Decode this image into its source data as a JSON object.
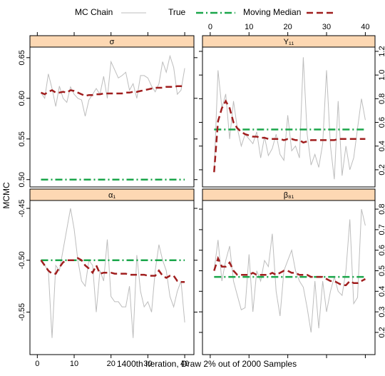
{
  "legend": [
    {
      "name": "MC Chain",
      "color": "#bdbdbd"
    },
    {
      "name": "True",
      "color": "#1aa64a"
    },
    {
      "name": "Moving Median",
      "color": "#a01e1e"
    }
  ],
  "xlabel": "1400th Iteration, Draw 2% out of 2000 Samples",
  "ylabel": "MCMC",
  "x": [
    1,
    2,
    3,
    4,
    5,
    6,
    7,
    8,
    9,
    10,
    11,
    12,
    13,
    14,
    15,
    16,
    17,
    18,
    19,
    20,
    21,
    22,
    23,
    24,
    25,
    26,
    27,
    28,
    29,
    30,
    31,
    32,
    33,
    34,
    35,
    36,
    37,
    38,
    39,
    40
  ],
  "xlim": [
    -2,
    42.5
  ],
  "xticks": [
    0,
    10,
    20,
    30,
    40
  ],
  "chart_data": [
    {
      "type": "line",
      "title": "σ",
      "chain": [
        0.607,
        0.6,
        0.63,
        0.612,
        0.59,
        0.615,
        0.6,
        0.595,
        0.614,
        0.605,
        0.6,
        0.598,
        0.578,
        0.598,
        0.605,
        0.612,
        0.605,
        0.627,
        0.6,
        0.645,
        0.635,
        0.625,
        0.628,
        0.632,
        0.61,
        0.618,
        0.6,
        0.628,
        0.628,
        0.625,
        0.615,
        0.608,
        0.618,
        0.645,
        0.632,
        0.652,
        0.638,
        0.605,
        0.61,
        0.637
      ],
      "median": [
        0.607,
        0.605,
        0.608,
        0.61,
        0.607,
        0.607,
        0.608,
        0.607,
        0.61,
        0.609,
        0.607,
        0.605,
        0.603,
        0.604,
        0.604,
        0.605,
        0.605,
        0.606,
        0.606,
        0.606,
        0.606,
        0.606,
        0.606,
        0.607,
        0.607,
        0.608,
        0.608,
        0.609,
        0.61,
        0.611,
        0.612,
        0.613,
        0.613,
        0.613,
        0.614,
        0.614,
        0.614,
        0.615,
        0.615,
        0.615
      ],
      "true": 0.5,
      "ylim": [
        0.491,
        0.663
      ],
      "yticks": [
        {
          "value": 0.5,
          "label": "0.50"
        },
        0.55,
        {
          "value": 0.6,
          "label": "0.60"
        },
        0.65
      ]
    },
    {
      "type": "line",
      "title": "Y₁₁",
      "chain": [
        0.18,
        1.04,
        0.72,
        0.84,
        0.46,
        0.78,
        0.55,
        0.4,
        0.5,
        0.46,
        0.42,
        0.52,
        0.3,
        0.48,
        0.32,
        0.38,
        0.5,
        0.33,
        0.28,
        0.66,
        0.36,
        0.4,
        0.3,
        1.15,
        0.5,
        0.24,
        0.33,
        0.22,
        0.42,
        1.04,
        0.4,
        0.12,
        0.78,
        0.15,
        0.4,
        0.2,
        0.3,
        0.55,
        0.8,
        0.62
      ],
      "median": [
        0.18,
        0.61,
        0.72,
        0.78,
        0.72,
        0.6,
        0.55,
        0.52,
        0.5,
        0.49,
        0.48,
        0.48,
        0.47,
        0.47,
        0.46,
        0.46,
        0.46,
        0.46,
        0.45,
        0.46,
        0.46,
        0.45,
        0.45,
        0.43,
        0.44,
        0.45,
        0.45,
        0.45,
        0.45,
        0.45,
        0.45,
        0.45,
        0.46,
        0.46,
        0.46,
        0.46,
        0.46,
        0.46,
        0.46,
        0.46
      ],
      "true": 0.54,
      "ylim": [
        0.055,
        1.236
      ],
      "yticks": [
        0.2,
        0.4,
        0.6,
        0.8,
        {
          "value": 1.0,
          "label": "1.0"
        },
        1.2
      ]
    },
    {
      "type": "line",
      "title": "α₁",
      "chain": [
        -0.5,
        -0.505,
        -0.51,
        -0.575,
        -0.505,
        -0.51,
        -0.49,
        -0.47,
        -0.45,
        -0.47,
        -0.5,
        -0.52,
        -0.525,
        -0.5,
        -0.505,
        -0.55,
        -0.51,
        -0.52,
        -0.48,
        -0.535,
        -0.54,
        -0.54,
        -0.545,
        -0.545,
        -0.525,
        -0.575,
        -0.495,
        -0.53,
        -0.545,
        -0.54,
        -0.55,
        -0.51,
        -0.485,
        -0.5,
        -0.51,
        -0.535,
        -0.545,
        -0.53,
        -0.52,
        -0.56
      ],
      "median": [
        -0.5,
        -0.505,
        -0.51,
        -0.513,
        -0.513,
        -0.507,
        -0.502,
        -0.5,
        -0.5,
        -0.5,
        -0.498,
        -0.5,
        -0.505,
        -0.508,
        -0.512,
        -0.505,
        -0.513,
        -0.512,
        -0.512,
        -0.512,
        -0.513,
        -0.513,
        -0.513,
        -0.513,
        -0.514,
        -0.514,
        -0.514,
        -0.514,
        -0.514,
        -0.515,
        -0.515,
        -0.515,
        -0.51,
        -0.515,
        -0.517,
        -0.515,
        -0.515,
        -0.52,
        -0.521,
        -0.521
      ],
      "true": -0.5,
      "ylim": [
        -0.591,
        -0.4424
      ],
      "yticks": [
        -0.55,
        {
          "value": -0.5,
          "label": "-0.50"
        },
        -0.45
      ]
    },
    {
      "type": "line",
      "title": "β₈₁",
      "chain": [
        0.5,
        0.65,
        0.45,
        0.55,
        0.62,
        0.45,
        0.38,
        0.31,
        0.32,
        0.58,
        0.3,
        0.5,
        0.45,
        0.55,
        0.52,
        0.68,
        0.4,
        0.28,
        0.5,
        0.55,
        0.6,
        0.5,
        0.45,
        0.42,
        0.32,
        0.2,
        0.45,
        0.22,
        0.45,
        0.3,
        0.4,
        0.47,
        0.4,
        0.38,
        0.5,
        0.75,
        0.34,
        0.37,
        0.8,
        0.72
      ],
      "median": [
        0.5,
        0.56,
        0.52,
        0.52,
        0.54,
        0.5,
        0.48,
        0.48,
        0.48,
        0.48,
        0.49,
        0.48,
        0.48,
        0.48,
        0.48,
        0.49,
        0.48,
        0.49,
        0.5,
        0.5,
        0.49,
        0.49,
        0.48,
        0.48,
        0.48,
        0.47,
        0.47,
        0.47,
        0.47,
        0.46,
        0.45,
        0.45,
        0.44,
        0.43,
        0.43,
        0.45,
        0.44,
        0.44,
        0.45,
        0.46
      ],
      "true": 0.47,
      "ylim": [
        0.092,
        0.842
      ],
      "yticks": [
        0.2,
        0.3,
        0.4,
        0.5,
        0.6,
        0.7,
        0.8
      ]
    }
  ]
}
